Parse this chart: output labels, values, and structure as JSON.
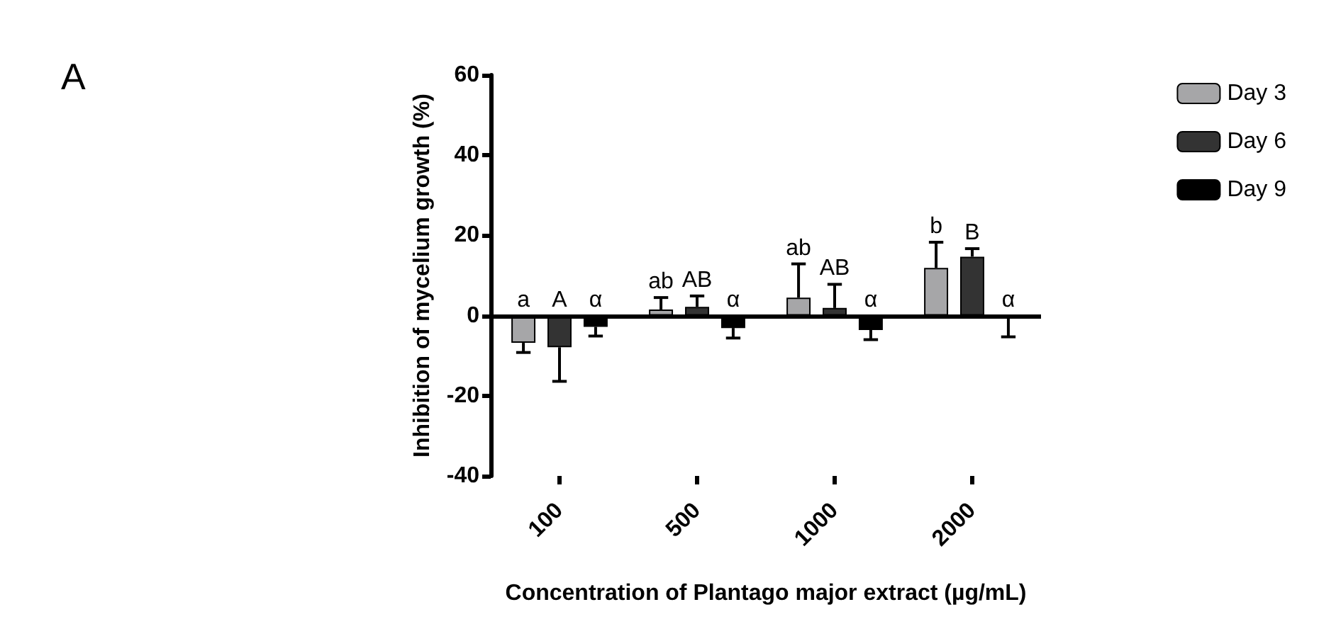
{
  "chart_data": {
    "type": "bar",
    "title": "A",
    "xlabel": "Concentration of Plantago major extract (µg/mL)",
    "ylabel": "Inhibition of mycelium growth (%)",
    "categories": [
      "100",
      "500",
      "1000",
      "2000"
    ],
    "series": [
      {
        "name": "Day 3",
        "color": "#a6a6a8",
        "values": [
          -6.8,
          1.5,
          4.5,
          11.9
        ],
        "errors": [
          [
            -9.2,
            -6.8
          ],
          [
            1.5,
            4.5
          ],
          [
            4.5,
            12.9
          ],
          [
            11.9,
            18.3
          ]
        ],
        "value_labels": [
          "a",
          "ab",
          "ab",
          "b"
        ]
      },
      {
        "name": "Day 6",
        "color": "#333333",
        "values": [
          -7.9,
          2.2,
          1.9,
          14.7
        ],
        "errors": [
          [
            -16.4,
            -7.9
          ],
          [
            2.2,
            4.9
          ],
          [
            1.9,
            7.8
          ],
          [
            14.7,
            16.7
          ]
        ],
        "value_labels": [
          "A",
          "AB",
          "AB",
          "B"
        ]
      },
      {
        "name": "Day 9",
        "color": "#000000",
        "values": [
          -2.8,
          -3.1,
          -3.6,
          -0.3
        ],
        "errors": [
          [
            -5.1,
            -2.8
          ],
          [
            -5.6,
            -3.1
          ],
          [
            -6,
            -3.6
          ],
          [
            -5.3,
            -0.3
          ]
        ],
        "value_labels": [
          "α",
          "α",
          "α",
          "α"
        ]
      }
    ],
    "ylim": [
      -40,
      60
    ],
    "yticks": [
      -40,
      -20,
      0,
      20,
      40,
      60
    ],
    "grid": false,
    "ref_lines": [
      {
        "axis": "y",
        "value": 0,
        "color": "#000000",
        "line_style": "solid"
      }
    ],
    "legend": "top right"
  }
}
